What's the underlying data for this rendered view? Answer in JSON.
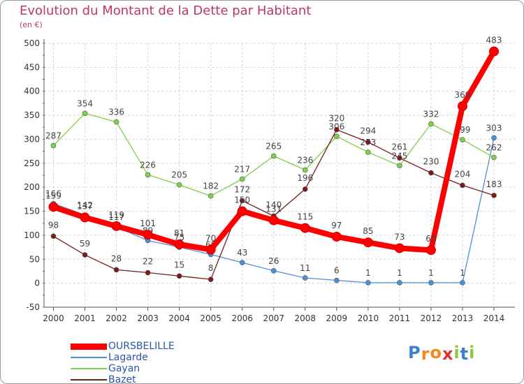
{
  "chart_data": {
    "type": "line",
    "title": "Evolution du Montant de la Dette par Habitant",
    "subtitle": "(en €)",
    "categories": [
      "2000",
      "2001",
      "2002",
      "2003",
      "2004",
      "2005",
      "2006",
      "2007",
      "2008",
      "2009",
      "2010",
      "2011",
      "2012",
      "2013",
      "2014"
    ],
    "ylim": [
      -50,
      500
    ],
    "yticks": [
      -50,
      0,
      50,
      100,
      150,
      200,
      250,
      300,
      350,
      400,
      450,
      500
    ],
    "grid": true,
    "legend_placement": "bottom-left",
    "series": [
      {
        "name": "OURSBELILLE",
        "color": "#ff0000",
        "values": [
          159,
          137,
          119,
          101,
          81,
          70,
          150,
          131,
          115,
          97,
          85,
          73,
          69,
          369,
          483
        ]
      },
      {
        "name": "Lagarde",
        "color": "#4a90d9",
        "values": [
          166,
          142,
          117,
          89,
          75,
          60,
          43,
          26,
          11,
          6,
          1,
          1,
          1,
          1,
          303
        ]
      },
      {
        "name": "Gayan",
        "color": "#7ed04a",
        "values": [
          287,
          354,
          336,
          226,
          205,
          182,
          217,
          265,
          236,
          306,
          273,
          245,
          332,
          299,
          262
        ]
      },
      {
        "name": "Bazet",
        "color": "#7a1b1b",
        "values": [
          98,
          59,
          28,
          22,
          15,
          8,
          172,
          140,
          196,
          320,
          294,
          261,
          230,
          204,
          183
        ]
      }
    ]
  },
  "brand": {
    "letters": [
      "P",
      "r",
      "o",
      "x",
      "i",
      "t",
      "i"
    ],
    "colors": [
      "#3a7fd0",
      "#f08a1c",
      "#f08a1c",
      "#e03030",
      "#8cc63f",
      "#3a7fd0",
      "#8cc63f"
    ]
  }
}
